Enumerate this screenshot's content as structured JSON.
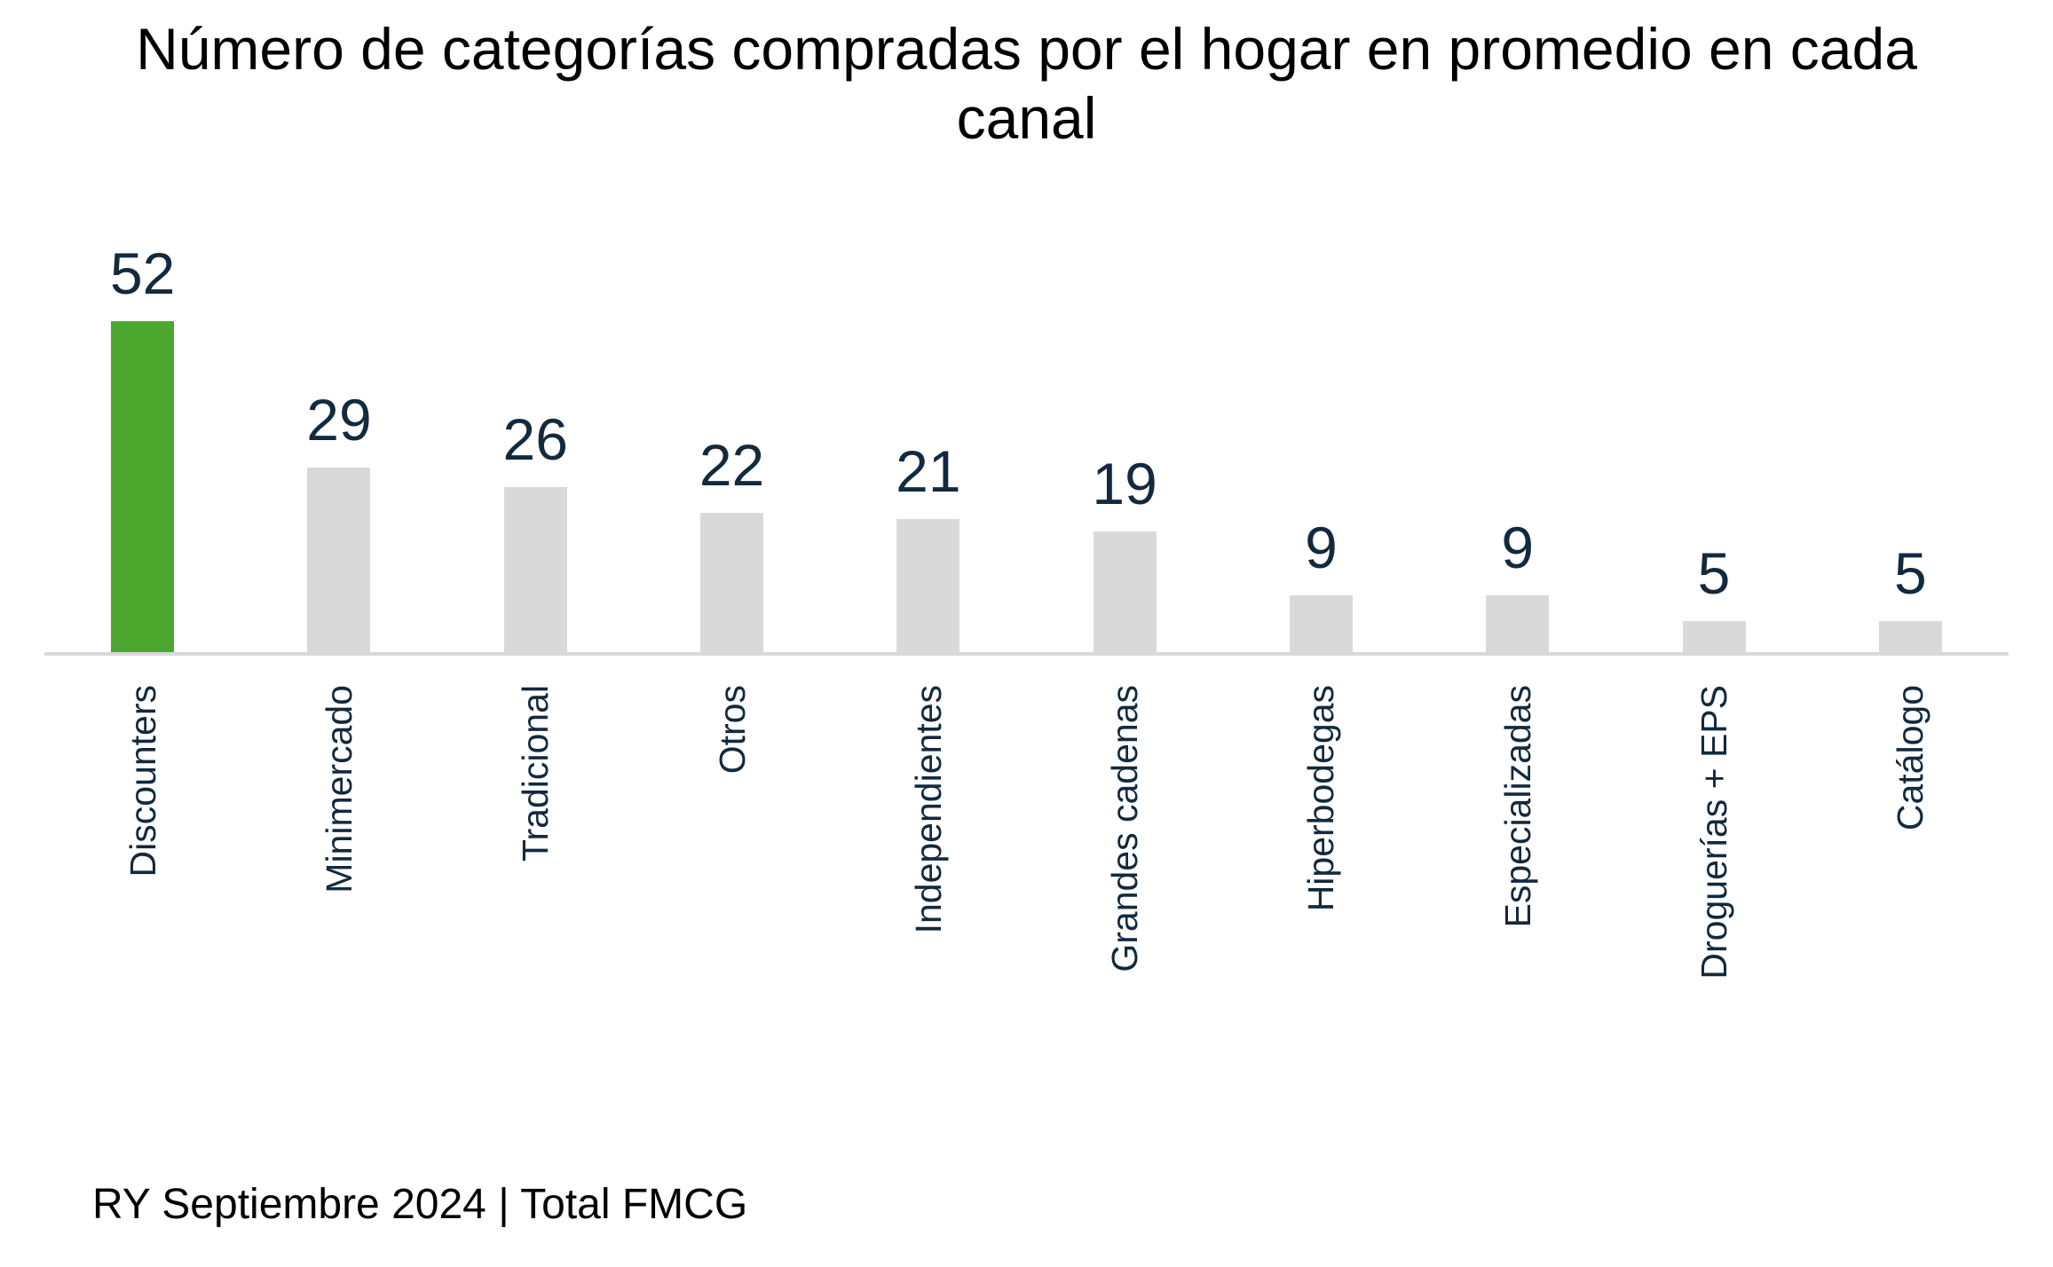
{
  "title": {
    "line1": "Número de categorías compradas por el hogar en promedio en cada",
    "line2": "canal"
  },
  "footnote": "RY Septiembre 2024 | Total FMCG",
  "colors": {
    "highlight_bar": "#4CA72E",
    "default_bar": "#D9D9D9",
    "value_text": "#13293D",
    "category_text": "#13293D",
    "title_text": "#000000",
    "axis_line": "#D9D9D9"
  },
  "chart_data": {
    "type": "bar",
    "title": "Número de categorías compradas por el hogar en promedio en cada canal",
    "categories": [
      "Discounters",
      "Minimercado",
      "Tradicional",
      "Otros",
      "Independientes",
      "Grandes cadenas",
      "Hiperbodegas",
      "Especializadas",
      "Droguerías + EPS",
      "Catálogo"
    ],
    "values": [
      52,
      29,
      26,
      22,
      21,
      19,
      9,
      9,
      5,
      5
    ],
    "highlight_index": 0,
    "data_labels": true,
    "y_axis_visible": false,
    "x_axis_label_rotation": 90,
    "grid": false,
    "legend": false,
    "ylim": [
      0,
      55
    ],
    "footnote": "RY Septiembre 2024 | Total FMCG"
  }
}
